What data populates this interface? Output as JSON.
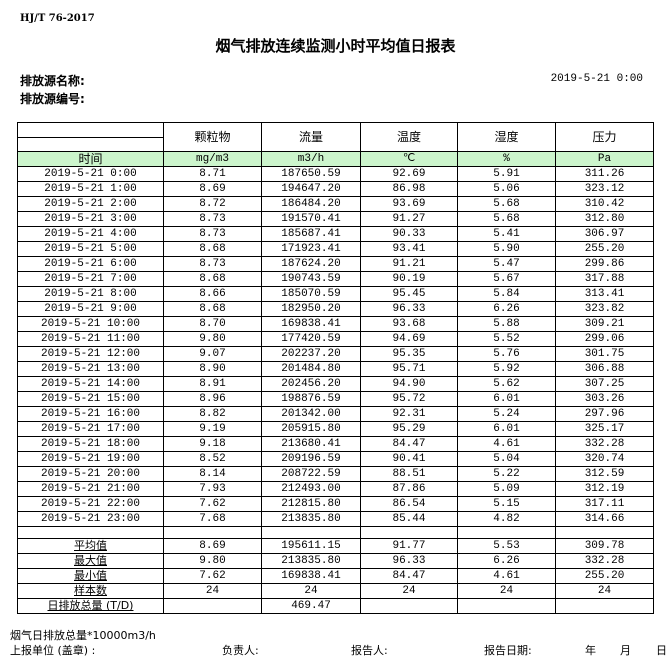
{
  "standard": "HJ/T  76-2017",
  "title": "烟气排放连续监测小时平均值日报表",
  "source_name_label": "排放源名称:",
  "source_id_label": "排放源编号:",
  "report_datetime": "2019-5-21 0:00",
  "columns": [
    "颗粒物",
    "流量",
    "温度",
    "湿度",
    "压力"
  ],
  "units": {
    "time": "时间",
    "values": [
      "mg/m3",
      "m3/h",
      "℃",
      "%",
      "Pa"
    ]
  },
  "rows": [
    [
      "2019-5-21 0:00",
      "8.71",
      "187650.59",
      "92.69",
      "5.91",
      "311.26"
    ],
    [
      "2019-5-21 1:00",
      "8.69",
      "194647.20",
      "86.98",
      "5.06",
      "323.12"
    ],
    [
      "2019-5-21 2:00",
      "8.72",
      "186484.20",
      "93.69",
      "5.68",
      "310.42"
    ],
    [
      "2019-5-21 3:00",
      "8.73",
      "191570.41",
      "91.27",
      "5.68",
      "312.80"
    ],
    [
      "2019-5-21 4:00",
      "8.73",
      "185687.41",
      "90.33",
      "5.41",
      "306.97"
    ],
    [
      "2019-5-21 5:00",
      "8.68",
      "171923.41",
      "93.41",
      "5.90",
      "255.20"
    ],
    [
      "2019-5-21 6:00",
      "8.73",
      "187624.20",
      "91.21",
      "5.47",
      "299.86"
    ],
    [
      "2019-5-21 7:00",
      "8.68",
      "190743.59",
      "90.19",
      "5.67",
      "317.88"
    ],
    [
      "2019-5-21 8:00",
      "8.66",
      "185070.59",
      "95.45",
      "5.84",
      "313.41"
    ],
    [
      "2019-5-21 9:00",
      "8.68",
      "182950.20",
      "96.33",
      "6.26",
      "323.82"
    ],
    [
      "2019-5-21 10:00",
      "8.70",
      "169838.41",
      "93.68",
      "5.88",
      "309.21"
    ],
    [
      "2019-5-21 11:00",
      "9.80",
      "177420.59",
      "94.69",
      "5.52",
      "299.06"
    ],
    [
      "2019-5-21 12:00",
      "9.07",
      "202237.20",
      "95.35",
      "5.76",
      "301.75"
    ],
    [
      "2019-5-21 13:00",
      "8.90",
      "201484.80",
      "95.71",
      "5.92",
      "306.88"
    ],
    [
      "2019-5-21 14:00",
      "8.91",
      "202456.20",
      "94.90",
      "5.62",
      "307.25"
    ],
    [
      "2019-5-21 15:00",
      "8.96",
      "198876.59",
      "95.72",
      "6.01",
      "303.26"
    ],
    [
      "2019-5-21 16:00",
      "8.82",
      "201342.00",
      "92.31",
      "5.24",
      "297.96"
    ],
    [
      "2019-5-21 17:00",
      "9.19",
      "205915.80",
      "95.29",
      "6.01",
      "325.17"
    ],
    [
      "2019-5-21 18:00",
      "9.18",
      "213680.41",
      "84.47",
      "4.61",
      "332.28"
    ],
    [
      "2019-5-21 19:00",
      "8.52",
      "209196.59",
      "90.41",
      "5.04",
      "320.74"
    ],
    [
      "2019-5-21 20:00",
      "8.14",
      "208722.59",
      "88.51",
      "5.22",
      "312.59"
    ],
    [
      "2019-5-21 21:00",
      "7.93",
      "212493.00",
      "87.86",
      "5.09",
      "312.19"
    ],
    [
      "2019-5-21 22:00",
      "7.62",
      "212815.80",
      "86.54",
      "5.15",
      "317.11"
    ],
    [
      "2019-5-21 23:00",
      "7.68",
      "213835.80",
      "85.44",
      "4.82",
      "314.66"
    ]
  ],
  "stats": [
    [
      "平均值",
      "8.69",
      "195611.15",
      "91.77",
      "5.53",
      "309.78"
    ],
    [
      "最大值",
      "9.80",
      "213835.80",
      "96.33",
      "6.26",
      "332.28"
    ],
    [
      "最小值",
      "7.62",
      "169838.41",
      "84.47",
      "4.61",
      "255.20"
    ],
    [
      "样本数",
      "24",
      "24",
      "24",
      "24",
      "24"
    ],
    [
      "日排放总量 (T/D)",
      "",
      "469.47",
      "",
      "",
      ""
    ]
  ],
  "footer": {
    "note": "烟气日排放总量*10000m3/h",
    "unit_label": "上报单位 (盖章) :",
    "responsible_label": "负责人:",
    "reporter_label": "报告人:",
    "report_date_label": "报告日期:",
    "year": "年",
    "month": "月",
    "day": "日"
  }
}
